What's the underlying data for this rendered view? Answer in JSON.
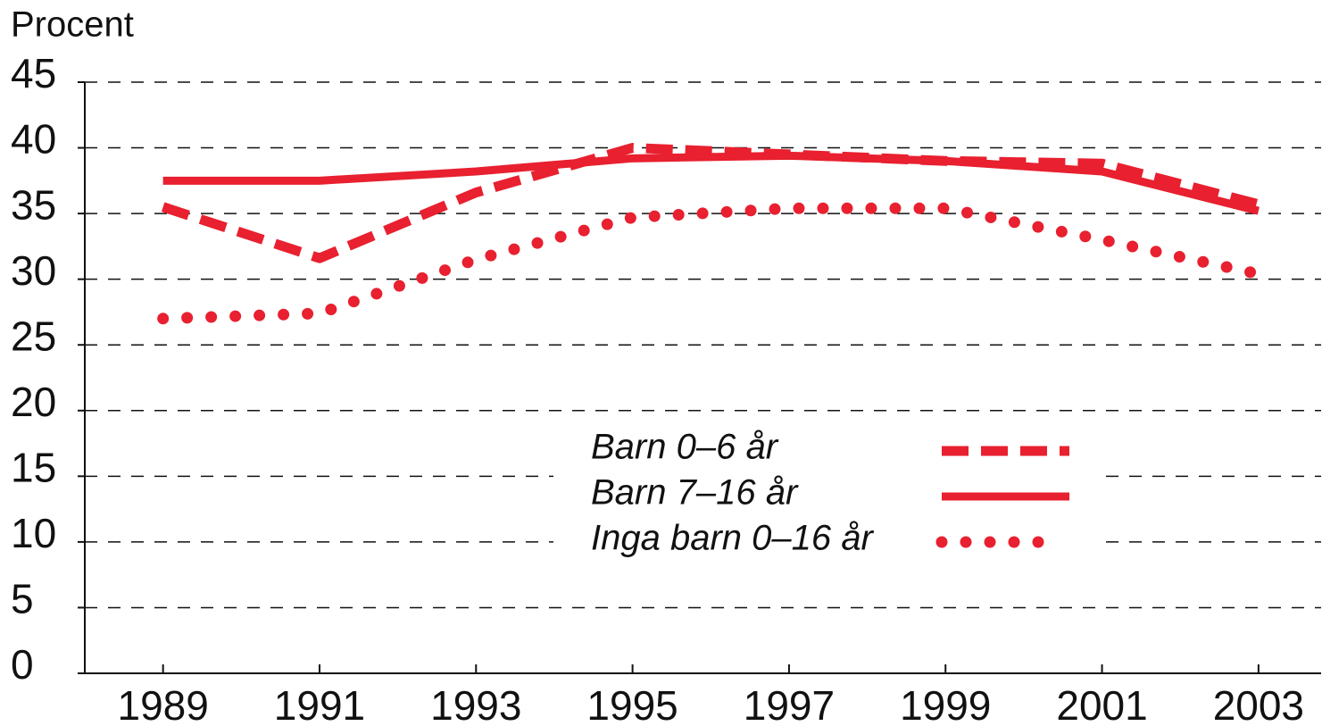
{
  "chart_data": {
    "type": "line",
    "y_label": "Procent",
    "x": [
      1989,
      1991,
      1993,
      1995,
      1997,
      1999,
      2001,
      2003
    ],
    "series": [
      {
        "name": "Barn 0–6 år",
        "color": "#e8202f",
        "style": "dashed",
        "values": [
          35.5,
          31.6,
          36.6,
          40.0,
          39.5,
          39.0,
          38.8,
          35.7
        ]
      },
      {
        "name": "Barn 7–16 år",
        "color": "#e8202f",
        "style": "solid",
        "values": [
          37.5,
          37.5,
          38.2,
          39.2,
          39.4,
          39.0,
          38.2,
          35.2
        ]
      },
      {
        "name": "Inga barn 0–16 år",
        "color": "#e8202f",
        "style": "dotted",
        "values": [
          27.0,
          27.4,
          31.5,
          34.7,
          35.4,
          35.4,
          33.0,
          30.4
        ]
      }
    ],
    "xlim": [
      1988,
      2003.8
    ],
    "xticks": [
      1989,
      1991,
      1993,
      1995,
      1997,
      1999,
      2001,
      2003
    ],
    "ylim": [
      0,
      45
    ],
    "yticks": [
      0,
      5,
      10,
      15,
      20,
      25,
      30,
      35,
      40,
      45
    ],
    "grid": true,
    "legend": "center"
  }
}
